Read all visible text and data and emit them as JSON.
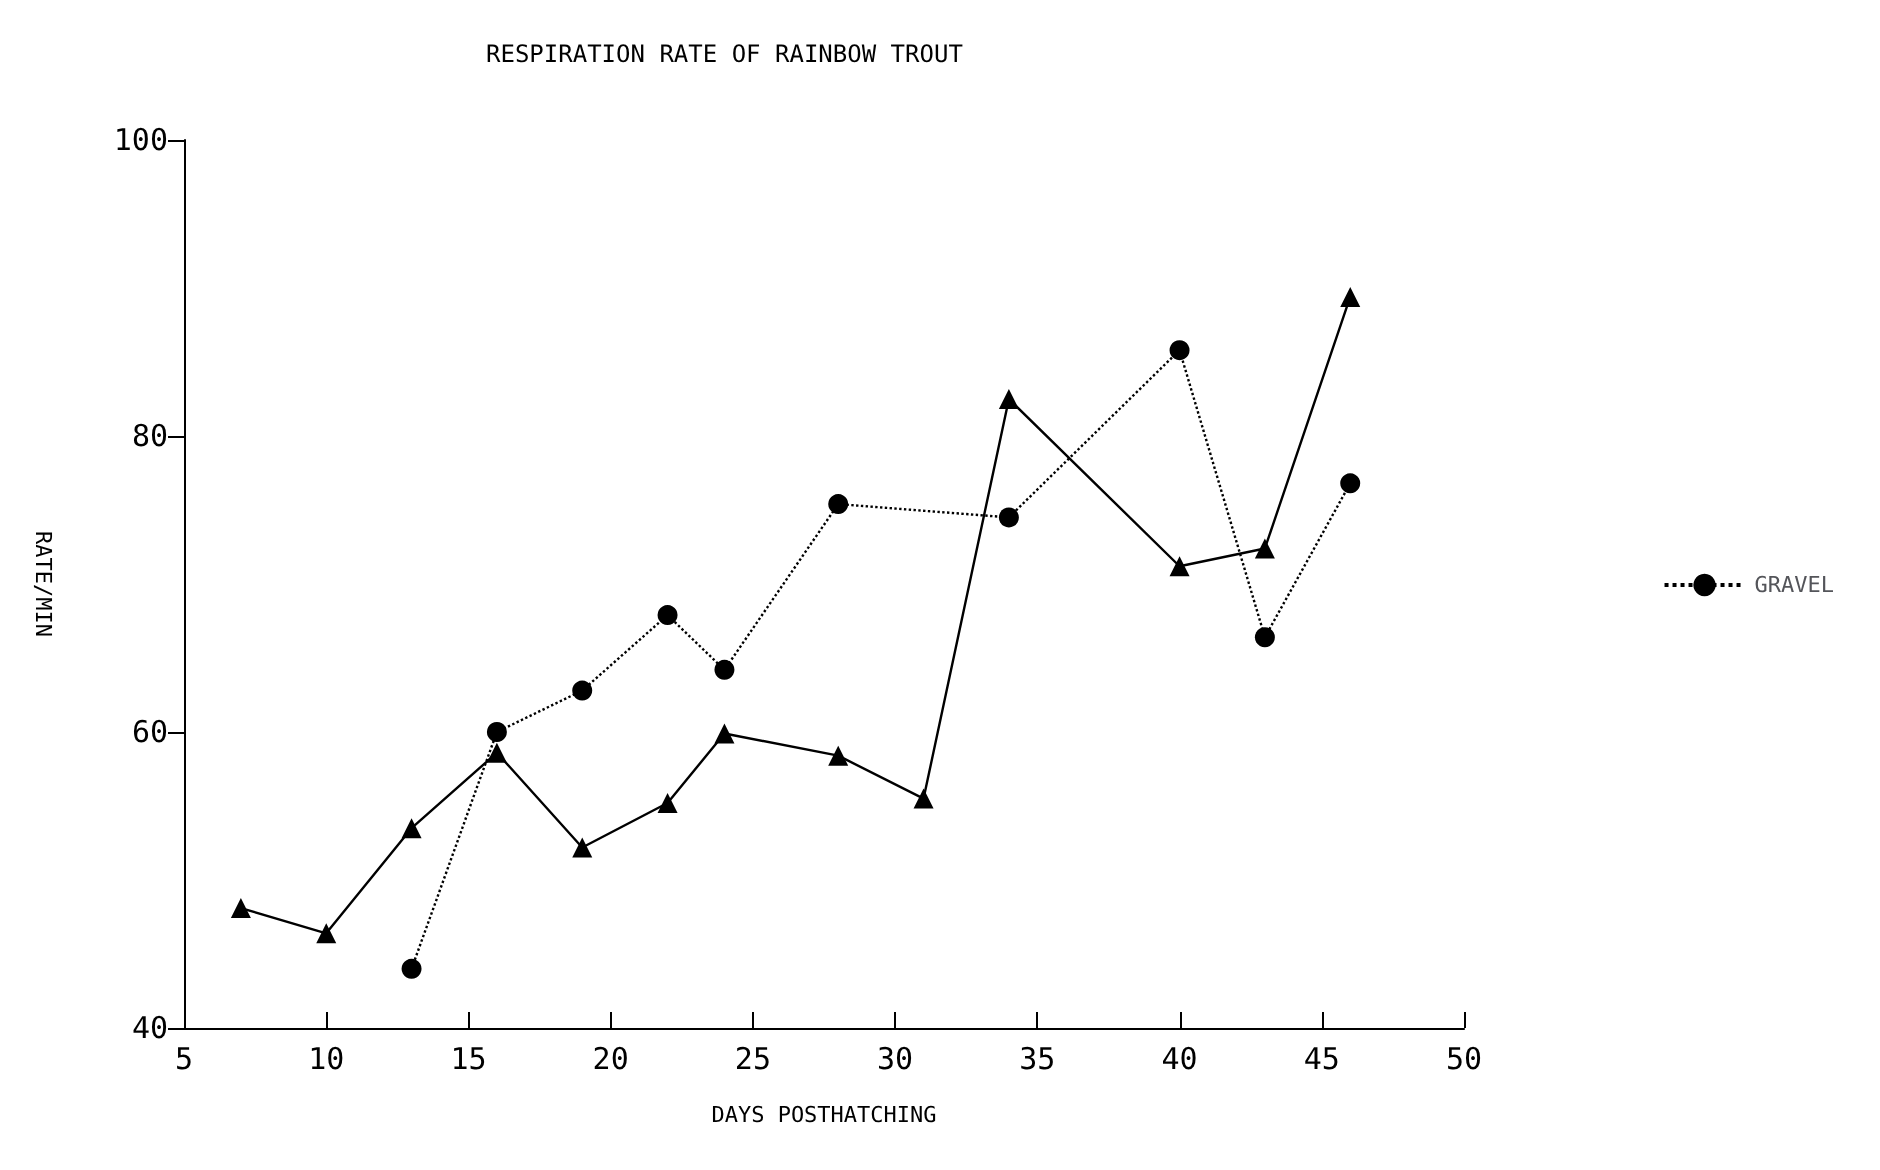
{
  "chart_data": {
    "type": "line",
    "title": "RESPIRATION RATE OF RAINBOW TROUT",
    "xlabel": "DAYS POSTHATCHING",
    "ylabel": "RATE/MIN",
    "xlim": [
      5,
      50
    ],
    "xticks": [
      5,
      10,
      15,
      20,
      25,
      30,
      35,
      40,
      45,
      50
    ],
    "ylim": [
      40,
      100
    ],
    "yticks": [
      40,
      60,
      80,
      100
    ],
    "legend": "right",
    "grid": false,
    "series": [
      {
        "color": "#000000",
        "marker": "triangle",
        "line_style": "solid",
        "x": [
          7,
          10,
          13,
          16,
          19,
          22,
          24,
          28,
          31,
          34,
          40,
          43,
          46
        ],
        "values": [
          48.1,
          46.4,
          53.5,
          58.6,
          52.2,
          55.2,
          59.9,
          58.4,
          55.5,
          82.5,
          71.2,
          72.4,
          89.4
        ]
      },
      {
        "name": "GRAVEL",
        "color": "#000000",
        "marker": "circle",
        "line_style": "dotted",
        "x": [
          13,
          16,
          19,
          22,
          24,
          28,
          34,
          40,
          43,
          46
        ],
        "values": [
          44.0,
          60.0,
          62.8,
          67.9,
          64.2,
          75.4,
          74.5,
          85.8,
          66.4,
          76.8
        ]
      }
    ]
  }
}
